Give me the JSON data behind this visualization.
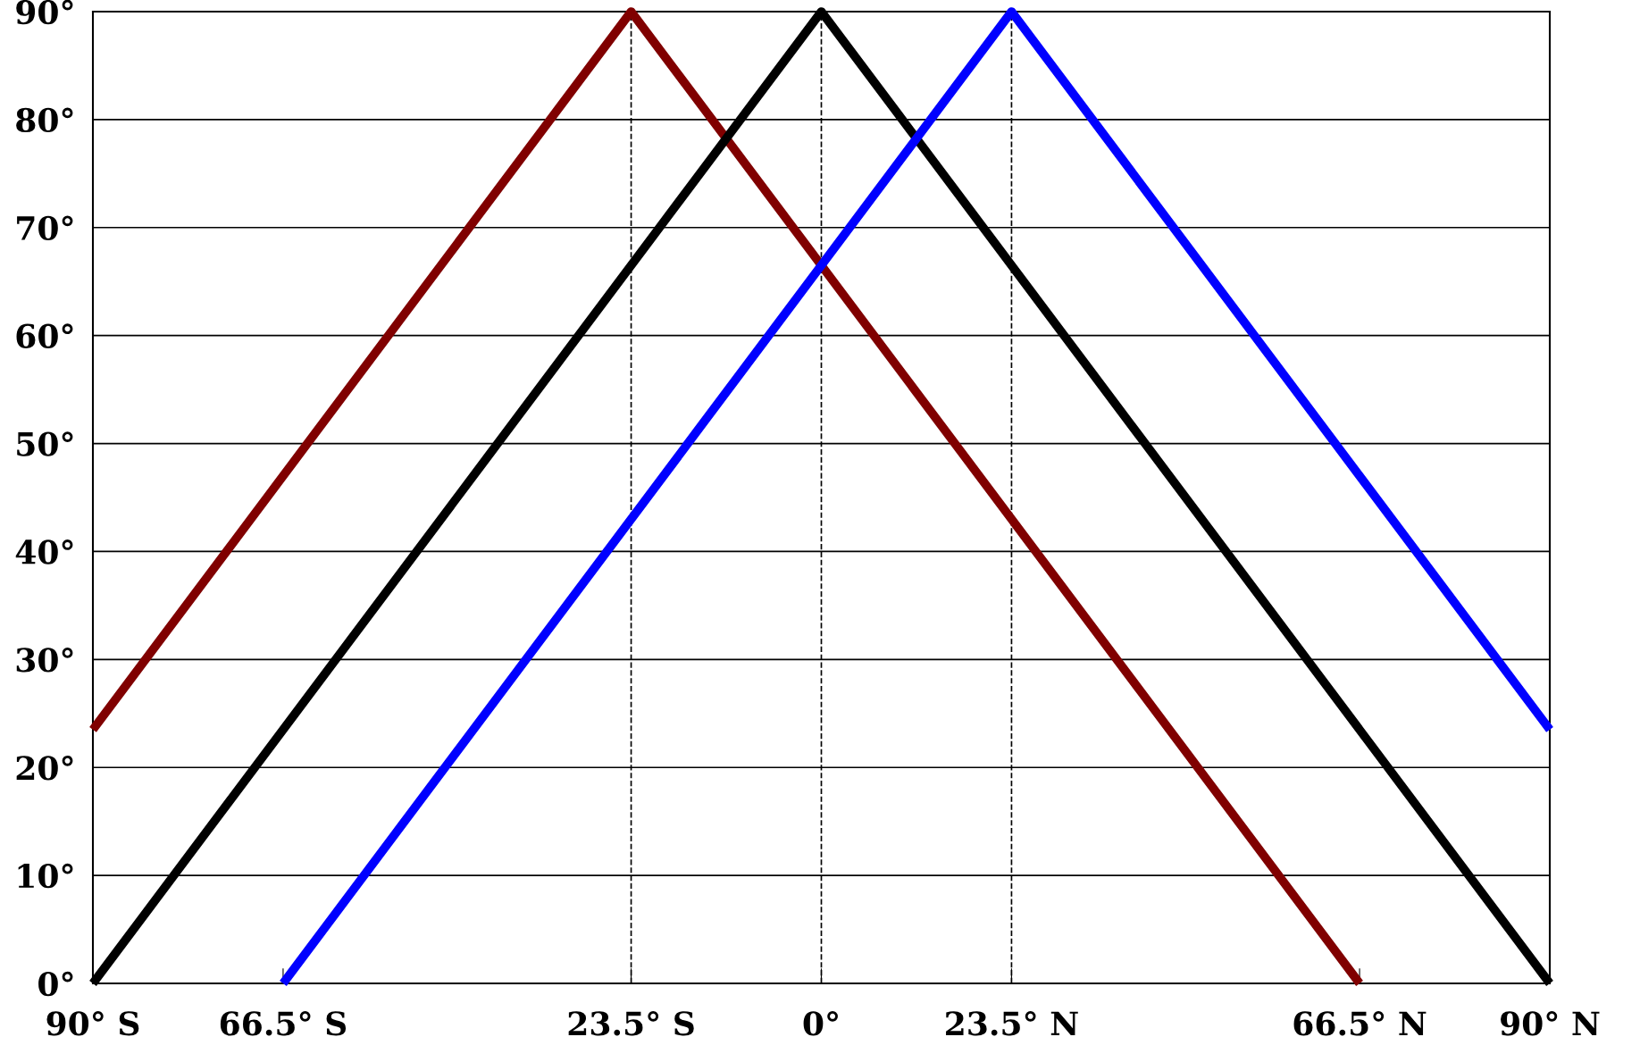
{
  "chart_data": {
    "type": "line",
    "series": [
      {
        "color": "#800000",
        "x": [
          -90,
          -23.5,
          66.5
        ],
        "values": [
          23.5,
          90,
          0
        ]
      },
      {
        "color": "#000000",
        "x": [
          -90,
          0,
          90
        ],
        "values": [
          0,
          90,
          0
        ]
      },
      {
        "color": "#0000ff",
        "x": [
          -66.5,
          23.5,
          90
        ],
        "values": [
          0,
          90,
          23.5
        ]
      }
    ],
    "xlim": [
      -90,
      90
    ],
    "xticks": [
      {
        "value": -90,
        "label": "90° S"
      },
      {
        "value": -66.5,
        "label": "66.5° S"
      },
      {
        "value": -23.5,
        "label": "23.5° S"
      },
      {
        "value": 0,
        "label": "0°"
      },
      {
        "value": 23.5,
        "label": "23.5° N"
      },
      {
        "value": 66.5,
        "label": "66.5° N"
      },
      {
        "value": 90,
        "label": "90° N"
      }
    ],
    "ylim": [
      0,
      90
    ],
    "yticks": [
      {
        "value": 0,
        "label": "0°"
      },
      {
        "value": 10,
        "label": "10°"
      },
      {
        "value": 20,
        "label": "20°"
      },
      {
        "value": 30,
        "label": "30°"
      },
      {
        "value": 40,
        "label": "40°"
      },
      {
        "value": 50,
        "label": "50°"
      },
      {
        "value": 60,
        "label": "60°"
      },
      {
        "value": 70,
        "label": "70°"
      },
      {
        "value": 80,
        "label": "80°"
      },
      {
        "value": 90,
        "label": "90°"
      }
    ],
    "ref_lines": [
      {
        "axis": "x",
        "value": -23.5,
        "color": "#000000",
        "line_style": "dashed"
      },
      {
        "axis": "x",
        "value": 0,
        "color": "#000000",
        "line_style": "dashed"
      },
      {
        "axis": "x",
        "value": 23.5,
        "color": "#000000",
        "line_style": "dashed"
      }
    ],
    "grid": "y",
    "marker": "none",
    "line_style": "solid",
    "legend": false
  }
}
